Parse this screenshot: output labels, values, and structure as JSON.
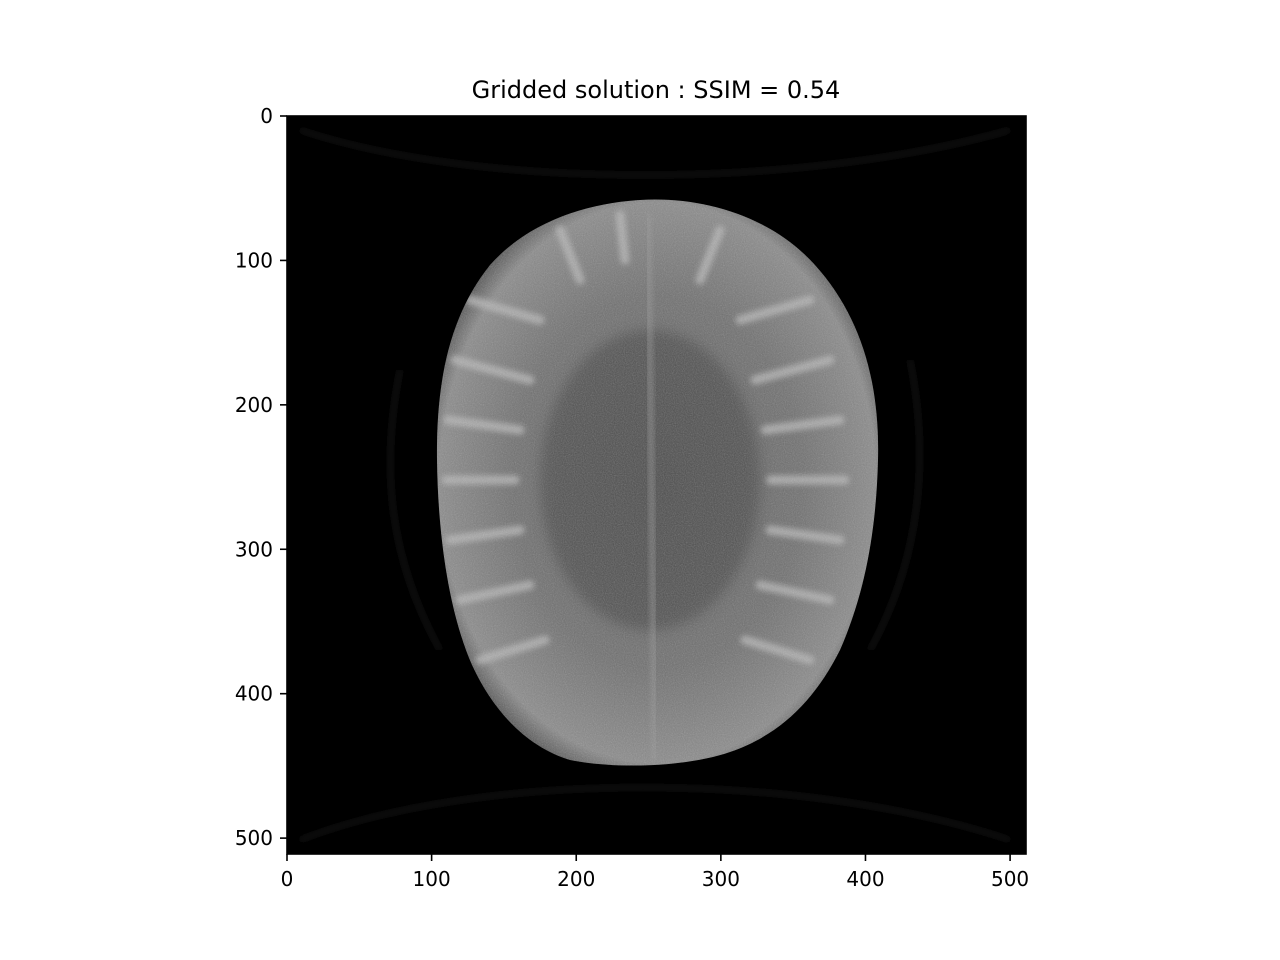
{
  "chart_data": {
    "type": "heatmap",
    "title": "Gridded solution : SSIM = 0.54",
    "xlabel": "",
    "ylabel": "",
    "xlim": [
      0,
      511
    ],
    "ylim": [
      511,
      0
    ],
    "x_ticks": [
      0,
      100,
      200,
      300,
      400,
      500
    ],
    "y_ticks": [
      0,
      100,
      200,
      300,
      400,
      500
    ],
    "colormap": "gray",
    "image_description_content": "grayscale MRI brain slice reconstruction",
    "grid": false,
    "legend": "none"
  },
  "colors": {
    "background": "#ffffff",
    "image_background": "#000000",
    "axes": "#000000"
  }
}
